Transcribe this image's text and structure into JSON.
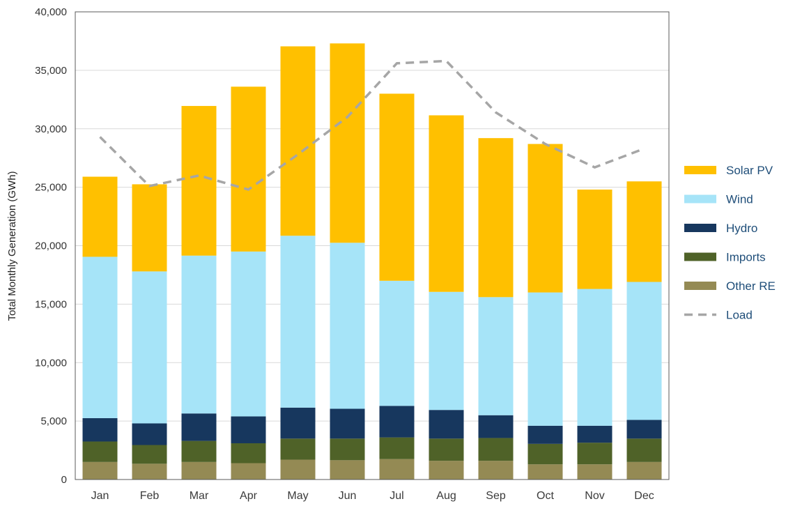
{
  "chart_data": {
    "type": "bar",
    "stacked": true,
    "title": "",
    "xlabel": "",
    "ylabel": "Total Monthly Generation (GWh)",
    "ylim": [
      0,
      40000
    ],
    "yticks": [
      0,
      5000,
      10000,
      15000,
      20000,
      25000,
      30000,
      35000,
      40000
    ],
    "ytick_labels": [
      "0",
      "5,000",
      "10,000",
      "15,000",
      "20,000",
      "25,000",
      "30,000",
      "35,000",
      "40,000"
    ],
    "grid": true,
    "legend_position": "right",
    "categories": [
      "Jan",
      "Feb",
      "Mar",
      "Apr",
      "May",
      "Jun",
      "Jul",
      "Aug",
      "Sep",
      "Oct",
      "Nov",
      "Dec"
    ],
    "series": [
      {
        "name": "Other RE",
        "color": "#948a54",
        "values": [
          1500,
          1350,
          1500,
          1400,
          1700,
          1650,
          1750,
          1600,
          1600,
          1300,
          1300,
          1500
        ]
      },
      {
        "name": "Imports",
        "color": "#4f6228",
        "values": [
          1750,
          1600,
          1800,
          1700,
          1800,
          1850,
          1850,
          1900,
          1950,
          1750,
          1850,
          2000
        ]
      },
      {
        "name": "Hydro",
        "color": "#17375e",
        "values": [
          2000,
          1850,
          2350,
          2300,
          2650,
          2550,
          2700,
          2450,
          1950,
          1550,
          1450,
          1600
        ]
      },
      {
        "name": "Wind",
        "color": "#a6e4f8",
        "values": [
          13800,
          13000,
          13500,
          14100,
          14700,
          14200,
          10700,
          10100,
          10100,
          11400,
          11700,
          11800
        ]
      },
      {
        "name": "Solar PV",
        "color": "#ffc000",
        "values": [
          6850,
          7450,
          12800,
          14100,
          16200,
          17050,
          16000,
          15100,
          13600,
          12700,
          8500,
          8600
        ]
      }
    ],
    "line_series": [
      {
        "name": "Load",
        "color": "#a6a6a6",
        "style": "dashed",
        "values": [
          29300,
          25100,
          26000,
          24800,
          27800,
          31000,
          35600,
          35800,
          31400,
          28700,
          26700,
          28300
        ]
      }
    ],
    "legend": [
      {
        "name": "Solar PV",
        "color": "#ffc000",
        "marker": "box"
      },
      {
        "name": "Wind",
        "color": "#a6e4f8",
        "marker": "box"
      },
      {
        "name": "Hydro",
        "color": "#17375e",
        "marker": "box"
      },
      {
        "name": "Imports",
        "color": "#4f6228",
        "marker": "box"
      },
      {
        "name": "Other RE",
        "color": "#948a54",
        "marker": "box"
      },
      {
        "name": "Load",
        "color": "#a6a6a6",
        "marker": "dashed-line"
      }
    ]
  }
}
